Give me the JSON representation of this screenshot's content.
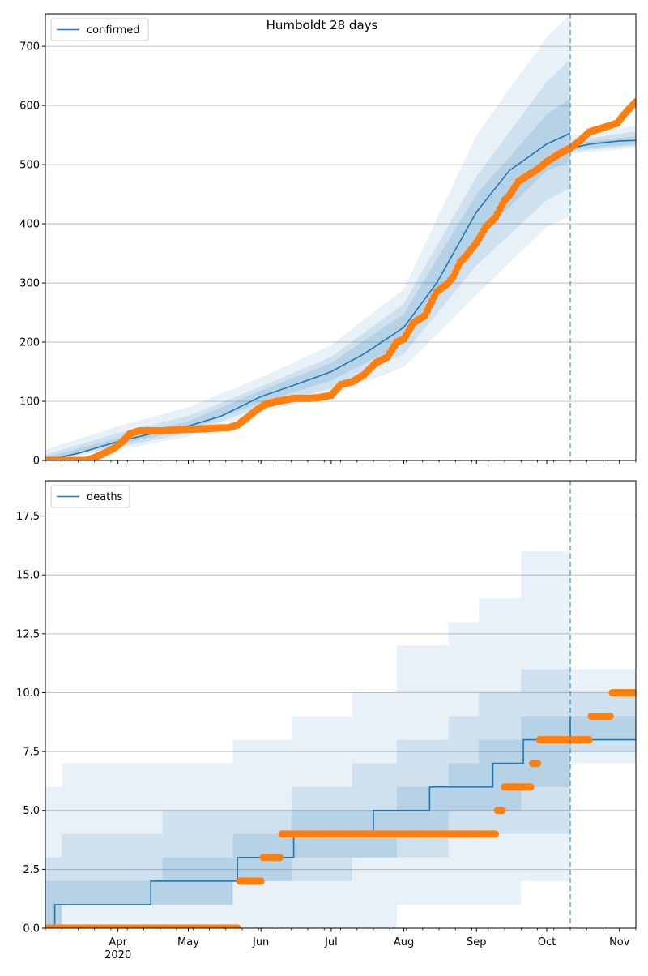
{
  "colors": {
    "model_line": "#1f77b4",
    "band": "#1f77b4",
    "observed": "#ff7f0e",
    "grid": "#b0b0b0",
    "axis": "#000000",
    "forecast_line": "#1f77b4"
  },
  "chart_data": [
    {
      "type": "line",
      "title": "Humboldt 28 days",
      "legend": {
        "label": "confirmed",
        "placement": "top-left"
      },
      "xlabel": "",
      "ylabel": "",
      "xlim": [
        "2020-03-01",
        "2020-11-08"
      ],
      "ylim": [
        0,
        755
      ],
      "yticks": [
        0,
        100,
        200,
        300,
        400,
        500,
        600,
        700
      ],
      "ytick_labels": [
        "0",
        "100",
        "200",
        "300",
        "400",
        "500",
        "600",
        "700"
      ],
      "grid": "horizontal",
      "forecast_start": "2020-10-11",
      "model": {
        "dates": [
          "2020-03-01",
          "2020-03-15",
          "2020-04-01",
          "2020-04-15",
          "2020-05-01",
          "2020-05-15",
          "2020-06-01",
          "2020-06-15",
          "2020-07-01",
          "2020-07-15",
          "2020-08-01",
          "2020-08-15",
          "2020-09-01",
          "2020-09-15",
          "2020-10-01",
          "2020-10-11"
        ],
        "values": [
          0,
          12,
          32,
          45,
          58,
          75,
          108,
          127,
          150,
          180,
          225,
          300,
          420,
          490,
          535,
          553
        ],
        "forecast_dates": [
          "2020-10-11",
          "2020-10-20",
          "2020-11-01",
          "2020-11-08"
        ],
        "forecast_values": [
          528,
          535,
          540,
          541
        ]
      },
      "bands": [
        {
          "level": "outer",
          "dates": [
            "2020-03-01",
            "2020-04-01",
            "2020-05-01",
            "2020-06-01",
            "2020-07-01",
            "2020-08-01",
            "2020-09-01",
            "2020-10-01",
            "2020-10-11"
          ],
          "lower": [
            0,
            18,
            40,
            82,
            110,
            158,
            280,
            395,
            412
          ],
          "upper": [
            18,
            58,
            90,
            140,
            195,
            290,
            550,
            715,
            755
          ],
          "forecast_dates": [
            "2020-10-11",
            "2020-11-08"
          ],
          "forecast_lower": [
            518,
            528
          ],
          "forecast_upper": [
            548,
            566
          ]
        },
        {
          "level": "middle",
          "dates": [
            "2020-03-01",
            "2020-04-01",
            "2020-05-01",
            "2020-06-01",
            "2020-07-01",
            "2020-08-01",
            "2020-09-01",
            "2020-10-01",
            "2020-10-11"
          ],
          "lower": [
            0,
            23,
            46,
            90,
            122,
            180,
            330,
            440,
            460
          ],
          "upper": [
            10,
            46,
            75,
            125,
            175,
            265,
            480,
            640,
            678
          ],
          "forecast_dates": [
            "2020-10-11",
            "2020-11-08"
          ],
          "forecast_lower": [
            522,
            532
          ],
          "forecast_upper": [
            540,
            556
          ]
        },
        {
          "level": "inner",
          "dates": [
            "2020-03-01",
            "2020-04-01",
            "2020-05-01",
            "2020-06-01",
            "2020-07-01",
            "2020-08-01",
            "2020-09-01",
            "2020-10-01",
            "2020-10-11"
          ],
          "lower": [
            0,
            27,
            52,
            98,
            135,
            198,
            375,
            490,
            505
          ],
          "upper": [
            5,
            38,
            66,
            118,
            165,
            248,
            450,
            585,
            612
          ],
          "forecast_dates": [
            "2020-10-11",
            "2020-11-08"
          ],
          "forecast_lower": [
            525,
            535
          ],
          "forecast_upper": [
            536,
            548
          ]
        }
      ],
      "observed": {
        "dates": [
          "2020-03-01",
          "2020-03-10",
          "2020-03-18",
          "2020-03-22",
          "2020-03-26",
          "2020-03-30",
          "2020-04-03",
          "2020-04-06",
          "2020-04-10",
          "2020-04-20",
          "2020-04-27",
          "2020-05-05",
          "2020-05-15",
          "2020-05-18",
          "2020-05-22",
          "2020-05-26",
          "2020-05-30",
          "2020-06-03",
          "2020-06-08",
          "2020-06-15",
          "2020-06-22",
          "2020-06-25",
          "2020-07-01",
          "2020-07-05",
          "2020-07-10",
          "2020-07-15",
          "2020-07-20",
          "2020-07-25",
          "2020-07-29",
          "2020-08-01",
          "2020-08-05",
          "2020-08-10",
          "2020-08-15",
          "2020-08-20",
          "2020-08-22",
          "2020-08-25",
          "2020-08-28",
          "2020-09-01",
          "2020-09-05",
          "2020-09-09",
          "2020-09-13",
          "2020-09-15",
          "2020-09-19",
          "2020-09-23",
          "2020-09-27",
          "2020-10-01",
          "2020-10-05",
          "2020-10-08",
          "2020-10-11",
          "2020-10-15",
          "2020-10-19",
          "2020-10-23",
          "2020-10-27",
          "2020-10-31",
          "2020-11-03",
          "2020-11-06",
          "2020-11-08"
        ],
        "values": [
          0,
          0,
          0,
          5,
          12,
          20,
          32,
          45,
          50,
          50,
          52,
          53,
          55,
          55,
          60,
          72,
          85,
          95,
          100,
          105,
          105,
          106,
          110,
          128,
          133,
          145,
          165,
          175,
          200,
          205,
          232,
          245,
          285,
          300,
          310,
          335,
          348,
          368,
          395,
          410,
          440,
          448,
          472,
          482,
          492,
          505,
          515,
          522,
          528,
          540,
          555,
          560,
          565,
          570,
          585,
          598,
          606
        ]
      },
      "xticks": [
        {
          "date": "2020-04-01",
          "label": "Apr",
          "sub": "2020"
        },
        {
          "date": "2020-05-01",
          "label": "May",
          "sub": ""
        },
        {
          "date": "2020-06-01",
          "label": "Jun",
          "sub": ""
        },
        {
          "date": "2020-07-01",
          "label": "Jul",
          "sub": ""
        },
        {
          "date": "2020-08-01",
          "label": "Aug",
          "sub": ""
        },
        {
          "date": "2020-09-01",
          "label": "Sep",
          "sub": ""
        },
        {
          "date": "2020-10-01",
          "label": "Oct",
          "sub": ""
        },
        {
          "date": "2020-11-01",
          "label": "Nov",
          "sub": ""
        }
      ]
    },
    {
      "type": "line",
      "title": "",
      "legend": {
        "label": "deaths",
        "placement": "top-left"
      },
      "xlabel": "",
      "ylabel": "",
      "xlim": [
        "2020-03-01",
        "2020-11-08"
      ],
      "ylim": [
        0,
        19
      ],
      "yticks": [
        0,
        2.5,
        5,
        7.5,
        10,
        12.5,
        15,
        17.5
      ],
      "ytick_labels": [
        "0.0",
        "2.5",
        "5.0",
        "7.5",
        "10.0",
        "12.5",
        "15.0",
        "17.5"
      ],
      "grid": "horizontal",
      "forecast_start": "2020-10-11",
      "model_step": {
        "dates": [
          "2020-03-01",
          "2020-03-05",
          "2020-04-15",
          "2020-05-22",
          "2020-06-15",
          "2020-07-19",
          "2020-08-12",
          "2020-09-08",
          "2020-09-21",
          "2020-10-11"
        ],
        "values": [
          0,
          1,
          2,
          3,
          4,
          5,
          6,
          7,
          8,
          9
        ],
        "forecast_dates": [
          "2020-10-11",
          "2020-11-08"
        ],
        "forecast_values": [
          8,
          8
        ]
      },
      "bands": [
        {
          "level": "outer",
          "dates": [
            "2020-03-01",
            "2020-03-08",
            "2020-04-20",
            "2020-05-20",
            "2020-06-14",
            "2020-07-10",
            "2020-07-29",
            "2020-08-20",
            "2020-09-02",
            "2020-09-20",
            "2020-10-11"
          ],
          "lower": [
            0,
            0,
            0,
            0,
            0,
            0,
            1,
            1,
            1,
            2,
            3
          ],
          "upper": [
            6,
            7,
            7,
            8,
            9,
            10,
            12,
            13,
            14,
            16,
            19
          ],
          "forecast_dates": [
            "2020-10-11",
            "2020-11-08"
          ],
          "forecast_lower": [
            7,
            7
          ],
          "forecast_upper": [
            11,
            11
          ]
        },
        {
          "level": "middle",
          "dates": [
            "2020-03-01",
            "2020-03-08",
            "2020-04-20",
            "2020-05-20",
            "2020-06-14",
            "2020-07-10",
            "2020-07-29",
            "2020-08-20",
            "2020-09-02",
            "2020-09-20",
            "2020-10-11"
          ],
          "lower": [
            0,
            1,
            1,
            2,
            2,
            3,
            3,
            4,
            4,
            4,
            5
          ],
          "upper": [
            3,
            4,
            5,
            5,
            6,
            7,
            8,
            9,
            10,
            11,
            14
          ],
          "forecast_dates": [
            "2020-10-11",
            "2020-11-08"
          ],
          "forecast_lower": [
            7.5,
            7.5
          ],
          "forecast_upper": [
            10,
            10
          ]
        },
        {
          "level": "inner",
          "dates": [
            "2020-03-01",
            "2020-03-08",
            "2020-04-20",
            "2020-05-20",
            "2020-06-14",
            "2020-07-10",
            "2020-07-29",
            "2020-08-20",
            "2020-09-02",
            "2020-09-20",
            "2020-10-11"
          ],
          "lower": [
            0,
            1,
            1,
            2,
            3,
            3,
            4,
            5,
            5,
            6,
            7
          ],
          "upper": [
            2,
            2,
            3,
            4,
            5,
            5,
            6,
            7,
            8,
            9,
            12
          ],
          "forecast_dates": [
            "2020-10-11",
            "2020-11-08"
          ],
          "forecast_lower": [
            8,
            8
          ],
          "forecast_upper": [
            9,
            9
          ]
        }
      ],
      "observed": {
        "dates": [
          "2020-03-01",
          "2020-03-10",
          "2020-03-20",
          "2020-04-01",
          "2020-04-10",
          "2020-04-20",
          "2020-05-01",
          "2020-05-10",
          "2020-05-20",
          "2020-05-23",
          "2020-05-27",
          "2020-05-31",
          "2020-06-02",
          "2020-06-05",
          "2020-06-10",
          "2020-06-20",
          "2020-07-01",
          "2020-07-10",
          "2020-07-20",
          "2020-08-01",
          "2020-08-10",
          "2020-08-20",
          "2020-09-01",
          "2020-09-05",
          "2020-09-08",
          "2020-09-10",
          "2020-09-13",
          "2020-09-18",
          "2020-09-22",
          "2020-09-25",
          "2020-09-28",
          "2020-10-01",
          "2020-10-05",
          "2020-10-09",
          "2020-10-11",
          "2020-10-14",
          "2020-10-18",
          "2020-10-20",
          "2020-10-23",
          "2020-10-26",
          "2020-10-29",
          "2020-11-01",
          "2020-11-04",
          "2020-11-08"
        ],
        "values": [
          0,
          0,
          0,
          0,
          0,
          0,
          0,
          0,
          0,
          2,
          2,
          2,
          3,
          3,
          4,
          4,
          4,
          4,
          4,
          4,
          4,
          4,
          4,
          4,
          4,
          5,
          6,
          6,
          6,
          7,
          8,
          8,
          8,
          8,
          8,
          8,
          8,
          9,
          9,
          9,
          10,
          10,
          10,
          10
        ]
      },
      "xticks": [
        {
          "date": "2020-04-01",
          "label": "Apr",
          "sub": "2020"
        },
        {
          "date": "2020-05-01",
          "label": "May",
          "sub": ""
        },
        {
          "date": "2020-06-01",
          "label": "Jun",
          "sub": ""
        },
        {
          "date": "2020-07-01",
          "label": "Jul",
          "sub": ""
        },
        {
          "date": "2020-08-01",
          "label": "Aug",
          "sub": ""
        },
        {
          "date": "2020-09-01",
          "label": "Sep",
          "sub": ""
        },
        {
          "date": "2020-10-01",
          "label": "Oct",
          "sub": ""
        },
        {
          "date": "2020-11-01",
          "label": "Nov",
          "sub": ""
        }
      ]
    }
  ]
}
